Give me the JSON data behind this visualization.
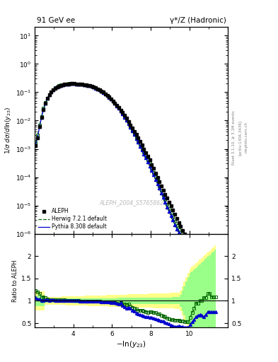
{
  "title_left": "91 GeV ee",
  "title_right": "γ*/Z (Hadronic)",
  "xlabel": "-ln(y_{23})",
  "ylabel_main": "1/σ dσ/dln(y_{23})",
  "ylabel_ratio": "Ratio to ALEPH",
  "watermark": "ALEPH_2004_S5765862",
  "right_label_1": "Rivet 3.1.10, ≥ 3.1M events",
  "right_label_2": "[arXiv:1306.3436]",
  "right_label_3": "mcplots.cern.ch",
  "xlim": [
    2.0,
    12.0
  ],
  "ylim_main": [
    1e-06,
    20.0
  ],
  "ylim_ratio": [
    0.4,
    2.5
  ],
  "aleph_x": [
    2.05,
    2.15,
    2.25,
    2.35,
    2.45,
    2.55,
    2.65,
    2.75,
    2.85,
    2.95,
    3.05,
    3.15,
    3.25,
    3.35,
    3.45,
    3.55,
    3.65,
    3.75,
    3.85,
    3.95,
    4.05,
    4.15,
    4.25,
    4.35,
    4.45,
    4.55,
    4.65,
    4.75,
    4.85,
    4.95,
    5.05,
    5.15,
    5.25,
    5.35,
    5.45,
    5.55,
    5.65,
    5.75,
    5.85,
    5.95,
    6.05,
    6.15,
    6.25,
    6.35,
    6.45,
    6.55,
    6.65,
    6.75,
    6.85,
    6.95,
    7.05,
    7.15,
    7.25,
    7.35,
    7.45,
    7.55,
    7.65,
    7.75,
    7.85,
    7.95,
    8.05,
    8.15,
    8.25,
    8.35,
    8.45,
    8.55,
    8.65,
    8.75,
    8.85,
    8.95,
    9.05,
    9.15,
    9.25,
    9.35,
    9.45,
    9.55,
    9.65,
    9.75,
    9.85,
    9.95,
    10.05,
    10.15,
    10.25,
    10.35,
    10.45,
    10.55,
    10.65,
    10.75,
    10.85,
    10.95,
    11.05,
    11.15,
    11.25,
    11.35
  ],
  "aleph_y": [
    0.0013,
    0.0025,
    0.006,
    0.013,
    0.025,
    0.04,
    0.06,
    0.08,
    0.1,
    0.12,
    0.14,
    0.155,
    0.165,
    0.175,
    0.185,
    0.19,
    0.195,
    0.198,
    0.2,
    0.2,
    0.2,
    0.198,
    0.196,
    0.194,
    0.192,
    0.188,
    0.183,
    0.177,
    0.17,
    0.162,
    0.153,
    0.143,
    0.133,
    0.122,
    0.111,
    0.1,
    0.089,
    0.078,
    0.068,
    0.059,
    0.05,
    0.042,
    0.035,
    0.029,
    0.023,
    0.019,
    0.015,
    0.012,
    0.009,
    0.007,
    0.0055,
    0.0042,
    0.0032,
    0.0024,
    0.0018,
    0.00135,
    0.001,
    0.00075,
    0.00055,
    0.0004,
    0.00028,
    0.0002,
    0.00014,
    0.0001,
    7e-05,
    5e-05,
    3.5e-05,
    2.5e-05,
    1.8e-05,
    1.3e-05,
    9.5e-06,
    6.8e-06,
    4.9e-06,
    3.5e-06,
    2.5e-06,
    1.8e-06,
    1.3e-06,
    9.5e-07,
    6.8e-07,
    4.9e-07,
    3.8e-07,
    3e-07,
    2.4e-07,
    2e-07,
    1.8e-07,
    1.6e-07,
    1.5e-07,
    1.4e-07,
    1.3e-07,
    1.2e-07,
    1.2e-07,
    1.2e-07,
    1.2e-07,
    1.2e-07
  ],
  "herwig_x": [
    2.05,
    2.15,
    2.25,
    2.35,
    2.45,
    2.55,
    2.65,
    2.75,
    2.85,
    2.95,
    3.05,
    3.15,
    3.25,
    3.35,
    3.45,
    3.55,
    3.65,
    3.75,
    3.85,
    3.95,
    4.05,
    4.15,
    4.25,
    4.35,
    4.45,
    4.55,
    4.65,
    4.75,
    4.85,
    4.95,
    5.05,
    5.15,
    5.25,
    5.35,
    5.45,
    5.55,
    5.65,
    5.75,
    5.85,
    5.95,
    6.05,
    6.15,
    6.25,
    6.35,
    6.45,
    6.55,
    6.65,
    6.75,
    6.85,
    6.95,
    7.05,
    7.15,
    7.25,
    7.35,
    7.45,
    7.55,
    7.65,
    7.75,
    7.85,
    7.95,
    8.05,
    8.15,
    8.25,
    8.35,
    8.45,
    8.55,
    8.65,
    8.75,
    8.85,
    8.95,
    9.05,
    9.15,
    9.25,
    9.35,
    9.45,
    9.55,
    9.65,
    9.75,
    9.85,
    9.95,
    10.05,
    10.15,
    10.25,
    10.35,
    10.45,
    10.55,
    10.65,
    10.75,
    10.85,
    10.95,
    11.05,
    11.15,
    11.25,
    11.35
  ],
  "herwig_y": [
    0.0016,
    0.003,
    0.007,
    0.014,
    0.027,
    0.043,
    0.062,
    0.082,
    0.103,
    0.123,
    0.143,
    0.158,
    0.168,
    0.178,
    0.187,
    0.193,
    0.197,
    0.2,
    0.201,
    0.201,
    0.2,
    0.198,
    0.196,
    0.193,
    0.19,
    0.186,
    0.181,
    0.175,
    0.168,
    0.16,
    0.151,
    0.141,
    0.131,
    0.12,
    0.109,
    0.098,
    0.087,
    0.076,
    0.066,
    0.057,
    0.048,
    0.04,
    0.033,
    0.027,
    0.022,
    0.017,
    0.014,
    0.011,
    0.0083,
    0.0062,
    0.0047,
    0.0035,
    0.0026,
    0.0019,
    0.00142,
    0.00105,
    0.00077,
    0.00057,
    0.00041,
    0.0003,
    0.00021,
    0.000148,
    0.000103,
    7.1e-05,
    4.9e-05,
    3.4e-05,
    2.3e-05,
    1.6e-05,
    1.1e-05,
    7.8e-06,
    5.5e-06,
    3.9e-06,
    2.8e-06,
    2e-06,
    1.4e-06,
    1e-06,
    7.2e-07,
    5.1e-07,
    3.6e-07,
    2.6e-07,
    2.4e-07,
    2.2e-07,
    2e-07,
    1.9e-07,
    1.7e-07,
    1.6e-07,
    1.5e-07,
    1.5e-07,
    1.4e-07,
    1.4e-07,
    1.4e-07,
    1.3e-07,
    1.3e-07,
    1.3e-07
  ],
  "pythia_x": [
    2.05,
    2.15,
    2.25,
    2.35,
    2.45,
    2.55,
    2.65,
    2.75,
    2.85,
    2.95,
    3.05,
    3.15,
    3.25,
    3.35,
    3.45,
    3.55,
    3.65,
    3.75,
    3.85,
    3.95,
    4.05,
    4.15,
    4.25,
    4.35,
    4.45,
    4.55,
    4.65,
    4.75,
    4.85,
    4.95,
    5.05,
    5.15,
    5.25,
    5.35,
    5.45,
    5.55,
    5.65,
    5.75,
    5.85,
    5.95,
    6.05,
    6.15,
    6.25,
    6.35,
    6.45,
    6.55,
    6.65,
    6.75,
    6.85,
    6.95,
    7.05,
    7.15,
    7.25,
    7.35,
    7.45,
    7.55,
    7.65,
    7.75,
    7.85,
    7.95,
    8.05,
    8.15,
    8.25,
    8.35,
    8.45,
    8.55,
    8.65,
    8.75,
    8.85,
    8.95,
    9.05,
    9.15,
    9.25,
    9.35,
    9.45,
    9.55,
    9.65,
    9.75,
    9.85,
    9.95,
    10.05,
    10.15,
    10.25,
    10.35,
    10.45,
    10.55,
    10.65,
    10.75,
    10.85,
    10.95,
    11.05,
    11.15,
    11.25,
    11.35
  ],
  "pythia_y": [
    0.0014,
    0.0026,
    0.0062,
    0.013,
    0.025,
    0.041,
    0.061,
    0.081,
    0.102,
    0.122,
    0.142,
    0.157,
    0.167,
    0.177,
    0.186,
    0.192,
    0.197,
    0.199,
    0.201,
    0.201,
    0.2,
    0.198,
    0.196,
    0.193,
    0.19,
    0.186,
    0.181,
    0.175,
    0.168,
    0.16,
    0.151,
    0.141,
    0.131,
    0.12,
    0.109,
    0.098,
    0.087,
    0.076,
    0.066,
    0.057,
    0.048,
    0.04,
    0.033,
    0.027,
    0.022,
    0.017,
    0.013,
    0.01,
    0.0077,
    0.0058,
    0.0043,
    0.0032,
    0.0023,
    0.0017,
    0.00124,
    0.00091,
    0.00066,
    0.00048,
    0.00035,
    0.00025,
    0.000175,
    0.000122,
    8.4e-05,
    5.8e-05,
    4e-05,
    2.75e-05,
    1.9e-05,
    1.3e-05,
    8.9e-06,
    6.2e-06,
    4.3e-06,
    3e-06,
    2.1e-06,
    1.5e-06,
    1.1e-06,
    7.7e-07,
    5.5e-07,
    3.9e-07,
    2.8e-07,
    2e-07,
    1.8e-07,
    1.6e-07,
    1.4e-07,
    1.3e-07,
    1.2e-07,
    1.1e-07,
    1e-07,
    9e-08,
    9e-08,
    9e-08,
    9e-08,
    9e-08,
    9e-08,
    9e-08
  ],
  "bg_color": "#ffffff",
  "aleph_color": "#000000",
  "herwig_color": "#006600",
  "pythia_color": "#0000cc",
  "yellow_color": "#ffff88",
  "green_color": "#88ff88"
}
